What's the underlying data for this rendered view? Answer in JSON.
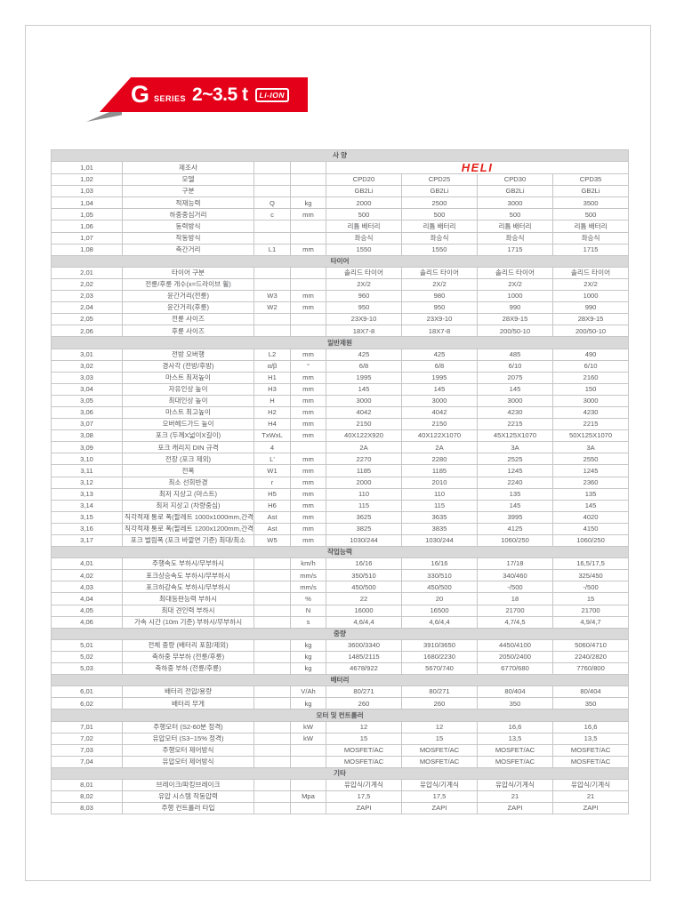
{
  "colors": {
    "accent_red": "#e50019",
    "logo_red": "#e2231a",
    "section_band": "#d9d9d9",
    "grid_line": "#c6c6c6",
    "body_text": "#595a5c"
  },
  "banner": {
    "g": "G",
    "series": "SERIES",
    "range": "2~3.5 t",
    "badge": "Li-ION"
  },
  "table": {
    "models": [
      "CPD20",
      "CPD25",
      "CPD30",
      "CPD35"
    ],
    "sections": [
      {
        "title": "사 양",
        "rows": [
          {
            "no": "1,01",
            "label": "제조사",
            "sym": "",
            "unit": "",
            "type": "brand",
            "values": [
              "HELI"
            ]
          },
          {
            "no": "1,02",
            "label": "모델",
            "sym": "",
            "unit": "",
            "values": [
              "CPD20",
              "CPD25",
              "CPD30",
              "CPD35"
            ]
          },
          {
            "no": "1,03",
            "label": "구분",
            "sym": "",
            "unit": "",
            "values": [
              "GB2Li",
              "GB2Li",
              "GB2Li",
              "GB2Li"
            ]
          },
          {
            "no": "1,04",
            "label": "적재능력",
            "sym": "Q",
            "unit": "kg",
            "values": [
              "2000",
              "2500",
              "3000",
              "3500"
            ]
          },
          {
            "no": "1,05",
            "label": "하중중심거리",
            "sym": "c",
            "unit": "mm",
            "values": [
              "500",
              "500",
              "500",
              "500"
            ]
          },
          {
            "no": "1,06",
            "label": "동력방식",
            "sym": "",
            "unit": "",
            "values": [
              "리튬 배터리",
              "리튬 배터리",
              "리튬 배터리",
              "리튬 배터리"
            ]
          },
          {
            "no": "1,07",
            "label": "작동방식",
            "sym": "",
            "unit": "",
            "values": [
              "좌승식",
              "좌승식",
              "좌승식",
              "좌승식"
            ]
          },
          {
            "no": "1,08",
            "label": "축간거리",
            "sym": "L1",
            "unit": "mm",
            "values": [
              "1550",
              "1550",
              "1715",
              "1715"
            ]
          }
        ]
      },
      {
        "title": "타이어",
        "rows": [
          {
            "no": "2,01",
            "label": "타이어 구분",
            "sym": "",
            "unit": "",
            "values": [
              "솔리드 타이어",
              "솔리드 타이어",
              "솔리드 타이어",
              "솔리드 타이어"
            ]
          },
          {
            "no": "2,02",
            "label": "전륜/후륜 개수(x=드라이브 휠)",
            "sym": "",
            "unit": "",
            "values": [
              "2X/2",
              "2X/2",
              "2X/2",
              "2X/2"
            ]
          },
          {
            "no": "2,03",
            "label": "윤간거리(전륜)",
            "sym": "W3",
            "unit": "mm",
            "values": [
              "960",
              "980",
              "1000",
              "1000"
            ]
          },
          {
            "no": "2,04",
            "label": "윤간거리(후륜)",
            "sym": "W2",
            "unit": "mm",
            "values": [
              "950",
              "950",
              "990",
              "990"
            ]
          },
          {
            "no": "2,05",
            "label": "전륜 사이즈",
            "sym": "",
            "unit": "",
            "values": [
              "23X9-10",
              "23X9-10",
              "28X9-15",
              "28X9-15"
            ]
          },
          {
            "no": "2,06",
            "label": "후륜 사이즈",
            "sym": "",
            "unit": "",
            "values": [
              "18X7-8",
              "18X7-8",
              "200/50-10",
              "200/50-10"
            ]
          }
        ]
      },
      {
        "title": "일반제원",
        "rows": [
          {
            "no": "3,01",
            "label": "전방 오버행",
            "sym": "L2",
            "unit": "mm",
            "values": [
              "425",
              "425",
              "485",
              "490"
            ]
          },
          {
            "no": "3,02",
            "label": "경사각 (전방/후방)",
            "sym": "α/β",
            "unit": "°",
            "values": [
              "6/8",
              "6/8",
              "6/10",
              "6/10"
            ]
          },
          {
            "no": "3,03",
            "label": "마스트 최저높이",
            "sym": "H1",
            "unit": "mm",
            "values": [
              "1995",
              "1995",
              "2075",
              "2160"
            ]
          },
          {
            "no": "3,04",
            "label": "자유인상 높이",
            "sym": "H3",
            "unit": "mm",
            "values": [
              "145",
              "145",
              "145",
              "150"
            ]
          },
          {
            "no": "3,05",
            "label": "최대인상 높이",
            "sym": "H",
            "unit": "mm",
            "values": [
              "3000",
              "3000",
              "3000",
              "3000"
            ]
          },
          {
            "no": "3,06",
            "label": "마스트 최고높이",
            "sym": "H2",
            "unit": "mm",
            "values": [
              "4042",
              "4042",
              "4230",
              "4230"
            ]
          },
          {
            "no": "3,07",
            "label": "오버헤드가드 높이",
            "sym": "H4",
            "unit": "mm",
            "values": [
              "2150",
              "2150",
              "2215",
              "2215"
            ]
          },
          {
            "no": "3,08",
            "label": "포크 (두께X넓이X길이)",
            "sym": "TxWxL",
            "unit": "mm",
            "values": [
              "40X122X920",
              "40X122X1070",
              "45X125X1070",
              "50X125X1070"
            ]
          },
          {
            "no": "3,09",
            "label": "포크 캐리지 DIN 규격",
            "sym": "4",
            "unit": "",
            "values": [
              "2A",
              "2A",
              "3A",
              "3A"
            ]
          },
          {
            "no": "3,10",
            "label": "전장 (포크 제외)",
            "sym": "L'",
            "unit": "mm",
            "values": [
              "2270",
              "2280",
              "2525",
              "2550"
            ]
          },
          {
            "no": "3,11",
            "label": "전폭",
            "sym": "W1",
            "unit": "mm",
            "values": [
              "1185",
              "1185",
              "1245",
              "1245"
            ]
          },
          {
            "no": "3,12",
            "label": "최소 선회반경",
            "sym": "r",
            "unit": "mm",
            "values": [
              "2000",
              "2010",
              "2240",
              "2360"
            ]
          },
          {
            "no": "3,13",
            "label": "최저 지상고 (마스트)",
            "sym": "H5",
            "unit": "mm",
            "values": [
              "110",
              "110",
              "135",
              "135"
            ]
          },
          {
            "no": "3,14",
            "label": "최저 지상고 (차량중심)",
            "sym": "H6",
            "unit": "mm",
            "values": [
              "115",
              "115",
              "145",
              "145"
            ]
          },
          {
            "no": "3,15",
            "label": "직각적재 통로 폭(팔레트 1000x1000mm,간격 200mm)",
            "sym": "Ast",
            "unit": "mm",
            "values": [
              "3625",
              "3635",
              "3995",
              "4020"
            ]
          },
          {
            "no": "3,16",
            "label": "직각적재 통로 폭(팔레트 1200x1200mm,간격 200mm)",
            "sym": "Ast",
            "unit": "mm",
            "values": [
              "3825",
              "3835",
              "4125",
              "4150"
            ]
          },
          {
            "no": "3,17",
            "label": "포크 벌림폭 (포크 바깥면 기준) 최대/최소",
            "sym": "W5",
            "unit": "mm",
            "values": [
              "1030/244",
              "1030/244",
              "1060/250",
              "1060/250"
            ]
          }
        ]
      },
      {
        "title": "작업능력",
        "rows": [
          {
            "no": "4,01",
            "label": "주행속도 부하시/무부하시",
            "sym": "",
            "unit": "km/h",
            "values": [
              "16/16",
              "16/16",
              "17/18",
              "16,5/17,5"
            ]
          },
          {
            "no": "4,02",
            "label": "포크상승속도 부하시/무부하시",
            "sym": "",
            "unit": "mm/s",
            "values": [
              "350/510",
              "330/510",
              "340/460",
              "325/450"
            ]
          },
          {
            "no": "4,03",
            "label": "포크하강속도 부하시/무부하시",
            "sym": "",
            "unit": "mm/s",
            "values": [
              "450/500",
              "450/500",
              "-/500",
              "-/500"
            ]
          },
          {
            "no": "4,04",
            "label": "최대등판능력 부하시",
            "sym": "",
            "unit": "%",
            "values": [
              "22",
              "20",
              "18",
              "15"
            ]
          },
          {
            "no": "4,05",
            "label": "최대 견인력 부하시",
            "sym": "",
            "unit": "N",
            "values": [
              "16000",
              "16500",
              "21700",
              "21700"
            ]
          },
          {
            "no": "4,06",
            "label": "가속 시간 (10m 기준) 부하시/무부하시",
            "sym": "",
            "unit": "s",
            "values": [
              "4,6/4,4",
              "4,6/4,4",
              "4,7/4,5",
              "4,9/4,7"
            ]
          }
        ]
      },
      {
        "title": "중량",
        "rows": [
          {
            "no": "5,01",
            "label": "전체 중량 (배터리 포함/제외)",
            "sym": "",
            "unit": "kg",
            "values": [
              "3600/3340",
              "3910/3650",
              "4450/4100",
              "5060/4710"
            ]
          },
          {
            "no": "5,02",
            "label": "축하중 무부하 (전륜/후륜)",
            "sym": "",
            "unit": "kg",
            "values": [
              "1485/2115",
              "1680/2230",
              "2050/2400",
              "2240/2820"
            ]
          },
          {
            "no": "5,03",
            "label": "축하중 부하 (전륜/후륜)",
            "sym": "",
            "unit": "kg",
            "values": [
              "4678/922",
              "5670/740",
              "6770/680",
              "7760/800"
            ]
          }
        ]
      },
      {
        "title": "배터리",
        "rows": [
          {
            "no": "6,01",
            "label": "배터리 전압/용량",
            "sym": "",
            "unit": "V/Ah",
            "values": [
              "80/271",
              "80/271",
              "80/404",
              "80/404"
            ]
          },
          {
            "no": "6,02",
            "label": "배터리 무게",
            "sym": "",
            "unit": "kg",
            "values": [
              "260",
              "260",
              "350",
              "350"
            ]
          }
        ]
      },
      {
        "title": "모터 및 컨트롤러",
        "rows": [
          {
            "no": "7,01",
            "label": "주행모터 (S2-60분 정격)",
            "sym": "",
            "unit": "kW",
            "values": [
              "12",
              "12",
              "16,6",
              "16,6"
            ]
          },
          {
            "no": "7,02",
            "label": "유압모터 (S3~15% 정격)",
            "sym": "",
            "unit": "kW",
            "values": [
              "15",
              "15",
              "13,5",
              "13,5"
            ]
          },
          {
            "no": "7,03",
            "label": "주행모터 제어방식",
            "sym": "",
            "unit": "",
            "values": [
              "MOSFET/AC",
              "MOSFET/AC",
              "MOSFET/AC",
              "MOSFET/AC"
            ]
          },
          {
            "no": "7,04",
            "label": "유압모터 제어방식",
            "sym": "",
            "unit": "",
            "values": [
              "MOSFET/AC",
              "MOSFET/AC",
              "MOSFET/AC",
              "MOSFET/AC"
            ]
          }
        ]
      },
      {
        "title": "기타",
        "rows": [
          {
            "no": "8,01",
            "label": "브레이크/파킹브레이크",
            "sym": "",
            "unit": "",
            "values": [
              "유압식/기계식",
              "유압식/기계식",
              "유압식/기계식",
              "유압식/기계식"
            ]
          },
          {
            "no": "8,02",
            "label": "유압 시스템 작동압력",
            "sym": "",
            "unit": "Mpa",
            "values": [
              "17,5",
              "17,5",
              "21",
              "21"
            ]
          },
          {
            "no": "8,03",
            "label": "주행 컨트롤러 타입",
            "sym": "",
            "unit": "",
            "values": [
              "ZAPI",
              "ZAPI",
              "ZAPI",
              "ZAPI"
            ]
          }
        ]
      }
    ]
  }
}
